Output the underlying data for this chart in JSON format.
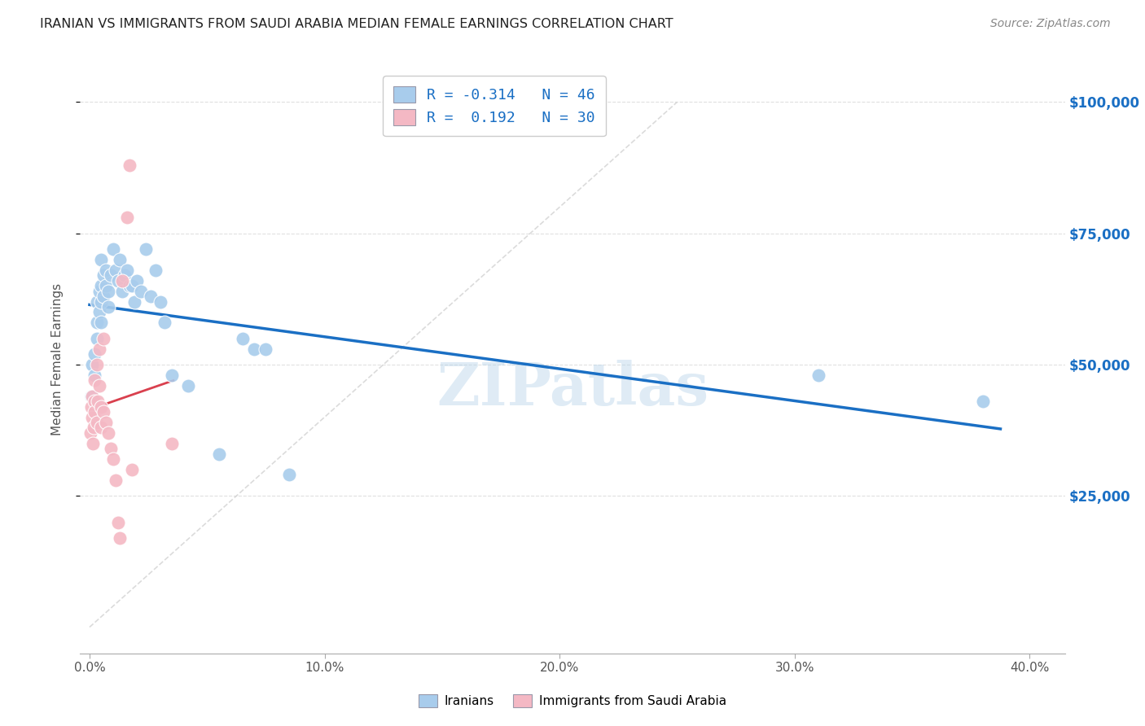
{
  "title": "IRANIAN VS IMMIGRANTS FROM SAUDI ARABIA MEDIAN FEMALE EARNINGS CORRELATION CHART",
  "source": "Source: ZipAtlas.com",
  "xlabel_ticks": [
    "0.0%",
    "10.0%",
    "20.0%",
    "30.0%",
    "40.0%"
  ],
  "xlabel_tick_vals": [
    0.0,
    0.1,
    0.2,
    0.3,
    0.4
  ],
  "ylabel": "Median Female Earnings",
  "ylabel_right_ticks": [
    "$25,000",
    "$50,000",
    "$75,000",
    "$100,000"
  ],
  "ylabel_right_vals": [
    25000,
    50000,
    75000,
    100000
  ],
  "ylim": [
    -5000,
    107000
  ],
  "xlim": [
    -0.004,
    0.415
  ],
  "iranians_R": -0.314,
  "iranians_N": 46,
  "saudi_R": 0.192,
  "saudi_N": 30,
  "legend_label_1": "Iranians",
  "legend_label_2": "Immigrants from Saudi Arabia",
  "blue_color": "#a8ccec",
  "pink_color": "#f4b8c4",
  "trendline_blue": "#1a6fc4",
  "trendline_pink": "#d9404e",
  "trendline_diagonal": "#cccccc",
  "iranians_x": [
    0.0008,
    0.0012,
    0.002,
    0.002,
    0.003,
    0.003,
    0.003,
    0.004,
    0.004,
    0.005,
    0.005,
    0.005,
    0.005,
    0.006,
    0.006,
    0.007,
    0.007,
    0.008,
    0.008,
    0.009,
    0.01,
    0.011,
    0.012,
    0.013,
    0.014,
    0.015,
    0.016,
    0.017,
    0.018,
    0.019,
    0.02,
    0.022,
    0.024,
    0.026,
    0.028,
    0.03,
    0.032,
    0.035,
    0.042,
    0.055,
    0.065,
    0.07,
    0.075,
    0.085,
    0.31,
    0.38
  ],
  "iranians_y": [
    44000,
    50000,
    52000,
    48000,
    62000,
    58000,
    55000,
    64000,
    60000,
    70000,
    65000,
    62000,
    58000,
    67000,
    63000,
    68000,
    65000,
    64000,
    61000,
    67000,
    72000,
    68000,
    66000,
    70000,
    64000,
    67000,
    68000,
    65000,
    65000,
    62000,
    66000,
    64000,
    72000,
    63000,
    68000,
    62000,
    58000,
    48000,
    46000,
    33000,
    55000,
    53000,
    53000,
    29000,
    48000,
    43000
  ],
  "saudi_x": [
    0.0005,
    0.0008,
    0.001,
    0.0012,
    0.0015,
    0.0018,
    0.002,
    0.002,
    0.002,
    0.003,
    0.003,
    0.0035,
    0.004,
    0.004,
    0.005,
    0.005,
    0.006,
    0.006,
    0.007,
    0.008,
    0.009,
    0.01,
    0.011,
    0.012,
    0.013,
    0.014,
    0.016,
    0.017,
    0.018,
    0.035
  ],
  "saudi_y": [
    37000,
    42000,
    40000,
    44000,
    35000,
    38000,
    43000,
    47000,
    41000,
    39000,
    50000,
    43000,
    46000,
    53000,
    42000,
    38000,
    55000,
    41000,
    39000,
    37000,
    34000,
    32000,
    28000,
    20000,
    17000,
    66000,
    78000,
    88000,
    30000,
    35000
  ],
  "watermark": "ZIPatlas",
  "background_color": "#ffffff",
  "grid_color": "#e0e0e0"
}
